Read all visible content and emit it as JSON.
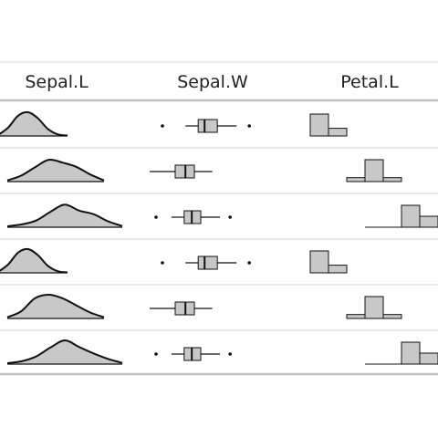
{
  "table": {
    "columns": [
      "Sepal.L",
      "Sepal.W",
      "Petal.L"
    ],
    "rows": [
      {
        "density": [
          0.04,
          0.35,
          0.85,
          1.0,
          0.75,
          0.3,
          0.07,
          0.02
        ],
        "box": {
          "whisker_low": 0.28,
          "q1": 0.38,
          "median": 0.43,
          "q3": 0.53,
          "whisker_high": 0.68,
          "outliers": [
            0.1,
            0.78
          ]
        },
        "hist": [
          1.0,
          0.35,
          0,
          0
        ]
      },
      {
        "density": [
          0.05,
          0.25,
          0.6,
          0.92,
          0.8,
          0.62,
          0.3,
          0.05
        ],
        "box": {
          "whisker_low": 0.0,
          "q1": 0.2,
          "median": 0.28,
          "q3": 0.35,
          "whisker_high": 0.49,
          "outliers": []
        },
        "hist": [
          0.18,
          1.0,
          0.18,
          0
        ]
      },
      {
        "density": [
          0.04,
          0.12,
          0.28,
          0.65,
          0.95,
          0.7,
          0.55,
          0.25,
          0.05
        ],
        "box": {
          "whisker_low": 0.17,
          "q1": 0.27,
          "median": 0.33,
          "q3": 0.4,
          "whisker_high": 0.55,
          "outliers": [
            0.05,
            0.63
          ]
        },
        "hist": [
          0,
          0,
          1.0,
          0.5
        ]
      },
      {
        "density": [
          0.04,
          0.35,
          0.85,
          1.0,
          0.75,
          0.3,
          0.07,
          0.02
        ],
        "box": {
          "whisker_low": 0.28,
          "q1": 0.38,
          "median": 0.43,
          "q3": 0.53,
          "whisker_high": 0.68,
          "outliers": [
            0.1,
            0.78
          ]
        },
        "hist": [
          1.0,
          0.35,
          0,
          0
        ]
      },
      {
        "density": [
          0.05,
          0.3,
          0.85,
          1.0,
          0.85,
          0.55,
          0.25,
          0.05
        ],
        "box": {
          "whisker_low": 0.0,
          "q1": 0.2,
          "median": 0.28,
          "q3": 0.35,
          "whisker_high": 0.49,
          "outliers": []
        },
        "hist": [
          0.18,
          1.0,
          0.18,
          0
        ]
      },
      {
        "density": [
          0.04,
          0.12,
          0.32,
          0.7,
          1.0,
          0.72,
          0.45,
          0.22,
          0.05
        ],
        "box": {
          "whisker_low": 0.17,
          "q1": 0.27,
          "median": 0.33,
          "q3": 0.4,
          "whisker_high": 0.55,
          "outliers": [
            0.05,
            0.63
          ]
        },
        "hist": [
          0,
          0,
          1.0,
          0.5
        ]
      }
    ]
  },
  "colors": {
    "fill": "#c8c8c8",
    "stroke": "#111111",
    "row_divider": "#d0d0d0",
    "header_divider": "#c2c2c2"
  }
}
